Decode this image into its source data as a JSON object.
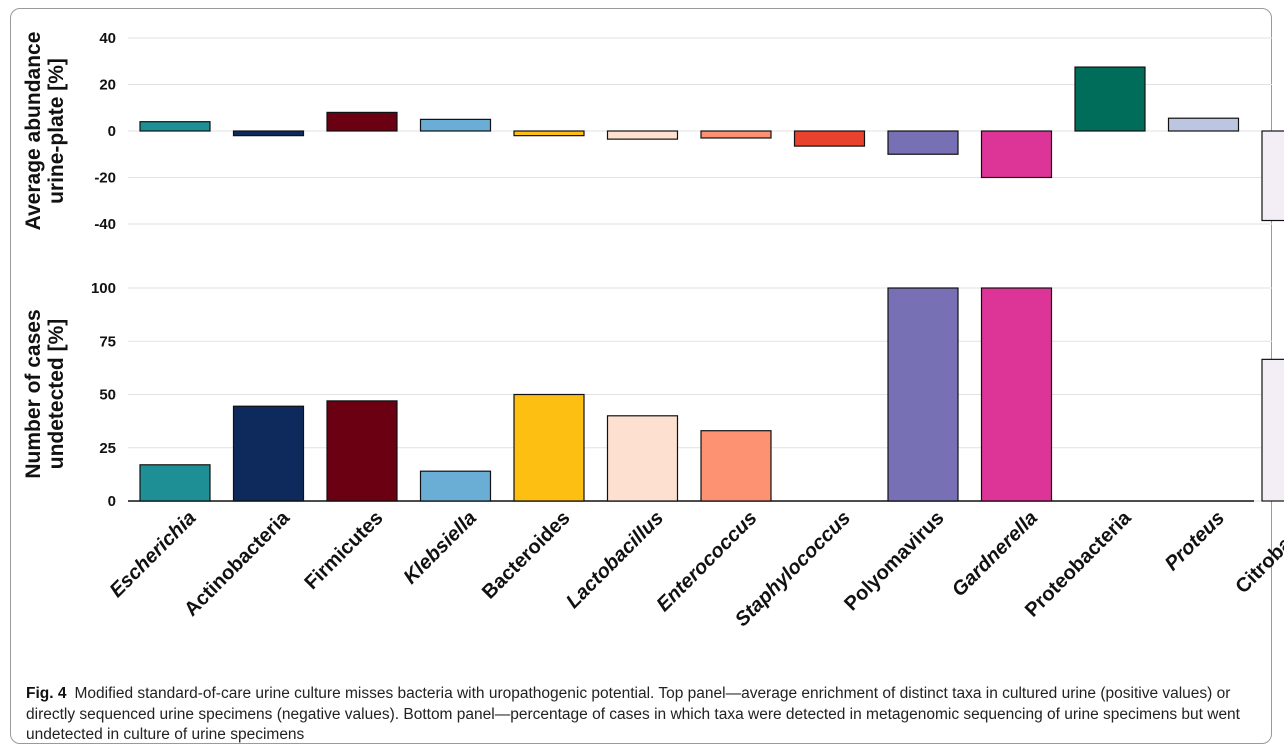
{
  "chart_data": [
    {
      "type": "bar",
      "panel": "top",
      "ylabel_lines": [
        "Average abundance",
        "urine-plate [%]"
      ],
      "ylim": [
        -40,
        40
      ],
      "yticks": [
        -40,
        -20,
        0,
        20,
        40
      ],
      "grid": true,
      "categories": [
        "Escherichia",
        "Actinobacteria",
        "Firmicutes",
        "Klebsiella",
        "Bacteroides",
        "Lactobacillus",
        "Enterococcus",
        "Staphylococcus",
        "Polyomavirus",
        "Gardnerella",
        "Proteobacteria",
        "Proteus",
        "Citrobacter"
      ],
      "values": [
        4,
        -2,
        8,
        5,
        -2,
        -3.5,
        -3,
        -6.5,
        -10,
        -20,
        27.5,
        5.5,
        -38.5
      ]
    },
    {
      "type": "bar",
      "panel": "bottom",
      "ylabel_lines": [
        "Number of cases",
        "undetected [%]"
      ],
      "ylim": [
        0,
        100
      ],
      "yticks": [
        0,
        25,
        50,
        75,
        100
      ],
      "grid": true,
      "categories": [
        "Escherichia",
        "Actinobacteria",
        "Firmicutes",
        "Klebsiella",
        "Bacteroides",
        "Lactobacillus",
        "Enterococcus",
        "Staphylococcus",
        "Polyomavirus",
        "Gardnerella",
        "Proteobacteria",
        "Proteus",
        "Citrobacter"
      ],
      "values": [
        17,
        44.5,
        47,
        14,
        50,
        40,
        33,
        0,
        100,
        100,
        0,
        0,
        66.5
      ]
    }
  ],
  "category_style": {
    "italic": [
      "Escherichia",
      "Klebsiella",
      "Lactobacillus",
      "Enterococcus",
      "Staphylococcus",
      "Gardnerella",
      "Proteus"
    ]
  },
  "colors": [
    "#1f8f96",
    "#0e2a5c",
    "#6a0012",
    "#6aaed6",
    "#fdbf11",
    "#fde0d0",
    "#fc9272",
    "#e8412d",
    "#7770b4",
    "#dd3497",
    "#006d5b",
    "#bcc6e0",
    "#f3eef5"
  ],
  "caption": {
    "label": "Fig. 4",
    "text": "Modified standard-of-care urine culture misses bacteria with uropathogenic potential. Top panel—average enrichment of distinct taxa in cultured urine (positive values) or directly sequenced urine specimens (negative values). Bottom panel—percentage of cases in which taxa were detected in metagenomic sequencing of urine specimens but went undetected in culture of urine specimens"
  }
}
